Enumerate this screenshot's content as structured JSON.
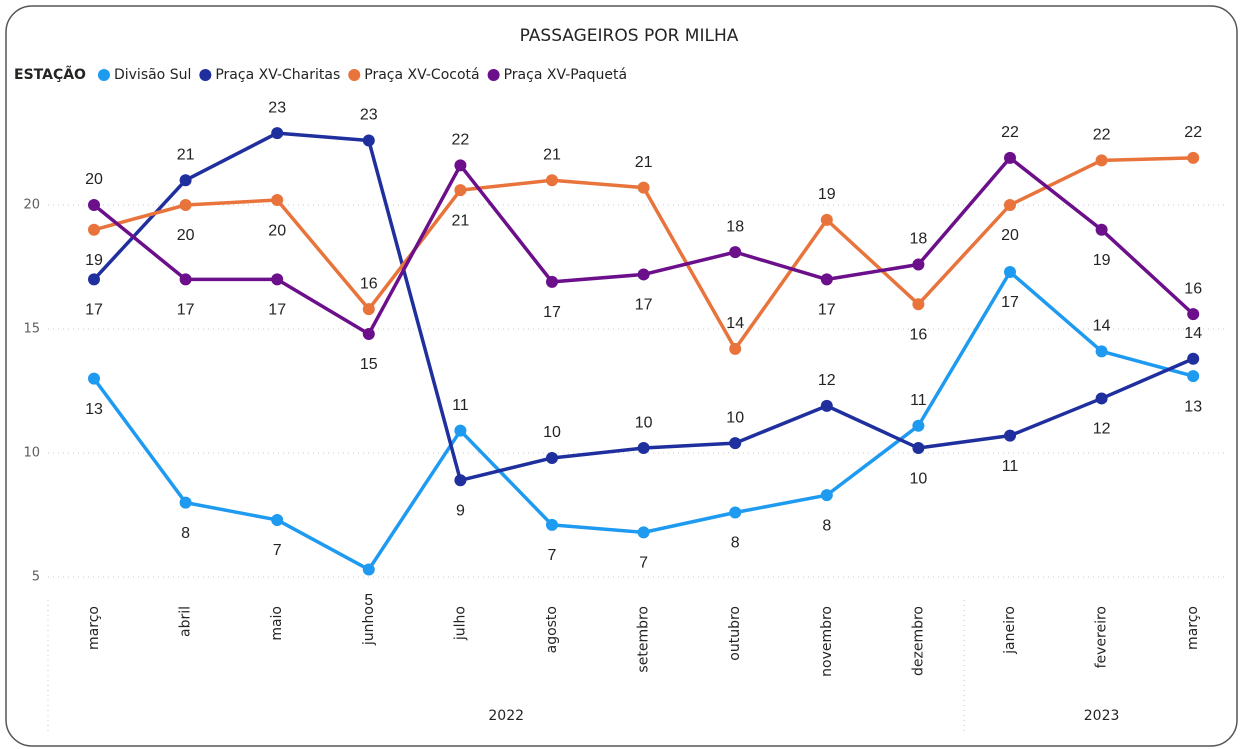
{
  "chart_data": {
    "type": "line",
    "title": "PASSAGEIROS POR MILHA",
    "legend_title": "ESTAÇÃO",
    "legend": "top-left",
    "grid": true,
    "categories": [
      "março",
      "abril",
      "maio",
      "junho",
      "julho",
      "agosto",
      "setembro",
      "outubro",
      "novembro",
      "dezembro",
      "janeiro",
      "fevereiro",
      "março"
    ],
    "category_groups": [
      {
        "label": "2022",
        "span": 10
      },
      {
        "label": "2023",
        "span": 3
      }
    ],
    "ylim": [
      4.5,
      24
    ],
    "yticks": [
      5,
      10,
      15,
      20
    ],
    "series": [
      {
        "name": "Divisão Sul",
        "color": "#1e9bf0",
        "values": [
          13.0,
          8.0,
          7.3,
          5.3,
          10.9,
          7.1,
          6.8,
          7.6,
          8.3,
          11.1,
          17.3,
          14.1,
          13.1
        ],
        "value_labels": [
          "13",
          "8",
          "7",
          "5",
          "11",
          "7",
          "7",
          "8",
          "8",
          "11",
          "17",
          "14",
          "13"
        ]
      },
      {
        "name": "Praça XV-Charitas",
        "color": "#1f2f9e",
        "values": [
          17.0,
          21.0,
          22.9,
          22.6,
          8.9,
          9.8,
          10.2,
          10.4,
          11.9,
          10.2,
          10.7,
          12.2,
          13.8
        ],
        "value_labels": [
          "17",
          "21",
          "23",
          "23",
          "9",
          "10",
          "10",
          "10",
          "12",
          "10",
          "11",
          "12",
          "14"
        ]
      },
      {
        "name": "Praça XV-Cocotá",
        "color": "#e8743b",
        "values": [
          19.0,
          20.0,
          20.2,
          15.8,
          20.6,
          21.0,
          20.7,
          14.2,
          19.4,
          16.0,
          20.0,
          21.8,
          21.9
        ],
        "value_labels": [
          "19",
          "20",
          "20",
          "16",
          "21",
          "21",
          "21",
          "14",
          "19",
          "16",
          "20",
          "22",
          "22"
        ]
      },
      {
        "name": "Praça XV-Paquetá",
        "color": "#6b0f8a",
        "values": [
          20.0,
          17.0,
          17.0,
          14.8,
          21.6,
          16.9,
          17.2,
          18.1,
          17.0,
          17.6,
          21.9,
          19.0,
          15.6
        ],
        "value_labels": [
          "20",
          "17",
          "17",
          "15",
          "22",
          "17",
          "17",
          "18",
          "17",
          "18",
          "22",
          "19",
          "16"
        ]
      }
    ]
  }
}
